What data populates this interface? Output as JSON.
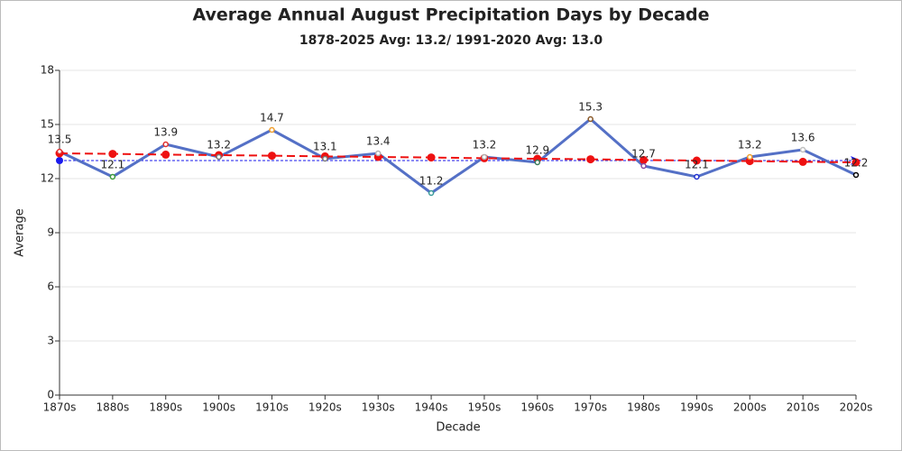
{
  "chart_data": {
    "type": "line",
    "title": "Average Annual August Precipitation Days by Decade",
    "subtitle": "1878-2025 Avg: 13.2/ 1991-2020 Avg: 13.0",
    "x_label": "Decade",
    "y_label": "Average",
    "categories": [
      "1870s",
      "1880s",
      "1890s",
      "1900s",
      "1910s",
      "1920s",
      "1930s",
      "1940s",
      "1950s",
      "1960s",
      "1970s",
      "1980s",
      "1990s",
      "2000s",
      "2010s",
      "2020s"
    ],
    "series": [
      {
        "color": "#5470c6",
        "values": [
          13.5,
          12.1,
          13.9,
          13.2,
          14.7,
          13.1,
          13.4,
          11.2,
          13.2,
          12.9,
          15.3,
          12.7,
          12.1,
          13.2,
          13.6,
          12.2
        ],
        "marker_colors": [
          "#e03030",
          "#3a9a3a",
          "#e03030",
          "#7a7a7a",
          "#f0a030",
          "#7a7a7a",
          "#b0b0b0",
          "#3a9a9a",
          "#b0b0b0",
          "#3a7a5a",
          "#8a5a2a",
          "#8a4aa0",
          "#2030d0",
          "#f0a030",
          "#c0c0c0",
          "#000000"
        ]
      },
      {
        "color": "#ee1111",
        "values": [
          13.4,
          13.37,
          13.33,
          13.3,
          13.27,
          13.23,
          13.2,
          13.17,
          13.13,
          13.1,
          13.07,
          13.03,
          13.0,
          12.97,
          12.93,
          12.9
        ]
      },
      {
        "color": "#1a1aee",
        "values": [
          13.0,
          13.0,
          13.0,
          13.0,
          13.0,
          13.0,
          13.0,
          13.0,
          13.0,
          13.0,
          13.0,
          13.0,
          13.0,
          13.0,
          13.0,
          13.0
        ]
      }
    ],
    "ylim": [
      0,
      18
    ],
    "yticks": [
      0,
      3,
      6,
      9,
      12,
      15,
      18
    ],
    "grid": true
  }
}
